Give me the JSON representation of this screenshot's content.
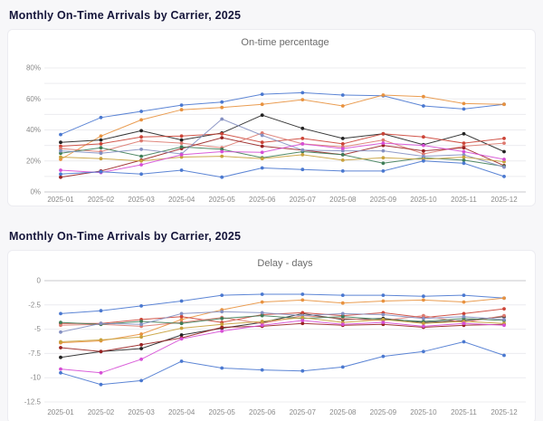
{
  "page": {
    "background": "#f7f7f9",
    "sections": [
      {
        "heading": "Monthly On-Time Arrivals by Carrier, 2025"
      },
      {
        "heading": "Monthly On-Time Arrivals by Carrier, 2025"
      }
    ]
  },
  "chart_data": [
    {
      "type": "line",
      "title": "On-time percentage",
      "xlabel": "",
      "ylabel": "",
      "grid": true,
      "legend": "none",
      "x": [
        "2025-01",
        "2025-02",
        "2025-03",
        "2025-04",
        "2025-05",
        "2025-06",
        "2025-07",
        "2025-08",
        "2025-09",
        "2025-10",
        "2025-11",
        "2025-12"
      ],
      "y_ticks": [
        {
          "value": 80,
          "label": "80%"
        },
        {
          "value": 70,
          "label": ""
        },
        {
          "value": 60,
          "label": "60%"
        },
        {
          "value": 50,
          "label": ""
        },
        {
          "value": 40,
          "label": "40%"
        },
        {
          "value": 30,
          "label": ""
        },
        {
          "value": 20,
          "label": "20%"
        },
        {
          "value": 10,
          "label": ""
        },
        {
          "value": 0,
          "label": "0%"
        }
      ],
      "ylim": [
        0,
        80
      ],
      "series": [
        {
          "name": "blue",
          "color": "#4a78d0",
          "values": [
            37,
            48,
            52,
            56,
            58,
            63,
            64,
            62.5,
            62,
            55.5,
            53.5,
            56.5
          ]
        },
        {
          "name": "orange",
          "color": "#e8923f",
          "values": [
            21,
            36,
            46.5,
            53,
            54.5,
            56.5,
            59.5,
            55.5,
            62.5,
            61.5,
            57,
            56.5
          ]
        },
        {
          "name": "black",
          "color": "#222222",
          "values": [
            32,
            33.5,
            39.5,
            33.5,
            38,
            49.5,
            41,
            34.5,
            37.5,
            30.5,
            37.5,
            26
          ]
        },
        {
          "name": "red",
          "color": "#cc4437",
          "values": [
            29.5,
            31,
            35.5,
            36,
            37.5,
            32,
            34.5,
            31,
            37.5,
            35.5,
            31.5,
            34.5
          ]
        },
        {
          "name": "salmon",
          "color": "#dd7a70",
          "values": [
            28,
            26,
            33,
            31.5,
            28.5,
            38,
            31,
            29,
            33.5,
            24.5,
            29.5,
            31.5
          ]
        },
        {
          "name": "maroon",
          "color": "#992222",
          "values": [
            9.5,
            13.5,
            20.5,
            28,
            35,
            29.5,
            27,
            24,
            30,
            26.5,
            28.5,
            17
          ]
        },
        {
          "name": "green",
          "color": "#3e7d57",
          "values": [
            25,
            28.5,
            23,
            29,
            27.5,
            22,
            26,
            24,
            18.5,
            22,
            20.5,
            16.5
          ]
        },
        {
          "name": "slate",
          "color": "#8590c2",
          "values": [
            26.5,
            25,
            27.5,
            24.5,
            47,
            36.5,
            27,
            26.5,
            26.5,
            23,
            24,
            16
          ]
        },
        {
          "name": "gold",
          "color": "#c8a13c",
          "values": [
            22.5,
            21.5,
            20,
            22.5,
            23,
            21.5,
            24,
            20.5,
            22,
            21,
            22.5,
            19.5
          ]
        },
        {
          "name": "magenta",
          "color": "#d64fd6",
          "values": [
            14,
            12.5,
            17.5,
            24,
            26,
            25.5,
            31,
            28,
            31.5,
            30,
            26,
            21
          ]
        },
        {
          "name": "blue-2",
          "color": "#4a78d0",
          "values": [
            11.5,
            13,
            11.5,
            14,
            9.5,
            15.5,
            14.5,
            13.5,
            13.5,
            20,
            18.5,
            10
          ]
        }
      ]
    },
    {
      "type": "line",
      "title": "Delay - days",
      "xlabel": "",
      "ylabel": "",
      "grid": true,
      "legend": "none",
      "x": [
        "2025-01",
        "2025-02",
        "2025-03",
        "2025-04",
        "2025-05",
        "2025-06",
        "2025-07",
        "2025-08",
        "2025-09",
        "2025-10",
        "2025-11",
        "2025-12"
      ],
      "y_ticks": [
        {
          "value": 0,
          "label": "0"
        },
        {
          "value": -2.5,
          "label": "-2.5"
        },
        {
          "value": -5,
          "label": "-5"
        },
        {
          "value": -7.5,
          "label": "-7.5"
        },
        {
          "value": -10,
          "label": "-10"
        },
        {
          "value": -12.5,
          "label": "-12.5"
        }
      ],
      "ylim": [
        -12.5,
        0
      ],
      "series": [
        {
          "name": "blue",
          "color": "#4a78d0",
          "values": [
            -3.4,
            -3.1,
            -2.6,
            -2.1,
            -1.5,
            -1.4,
            -1.4,
            -1.5,
            -1.5,
            -1.6,
            -1.5,
            -1.8
          ]
        },
        {
          "name": "orange",
          "color": "#e8923f",
          "values": [
            -6.4,
            -6.2,
            -5.5,
            -4.0,
            -3.0,
            -2.2,
            -2.0,
            -2.3,
            -2.1,
            -2.0,
            -2.2,
            -1.8
          ]
        },
        {
          "name": "black",
          "color": "#222222",
          "values": [
            -7.9,
            -7.3,
            -7.0,
            -5.6,
            -4.9,
            -4.3,
            -3.4,
            -4.0,
            -3.9,
            -4.3,
            -4.1,
            -3.7
          ]
        },
        {
          "name": "red",
          "color": "#cc4437",
          "values": [
            -4.4,
            -4.4,
            -4.0,
            -3.7,
            -4.3,
            -3.5,
            -3.3,
            -3.6,
            -3.3,
            -3.8,
            -3.4,
            -2.9
          ]
        },
        {
          "name": "salmon",
          "color": "#dd7a70",
          "values": [
            -4.6,
            -4.5,
            -4.7,
            -4.3,
            -3.8,
            -4.4,
            -3.6,
            -3.9,
            -4.1,
            -3.6,
            -4.3,
            -3.6
          ]
        },
        {
          "name": "maroon",
          "color": "#992222",
          "values": [
            -6.9,
            -7.3,
            -6.6,
            -5.9,
            -4.8,
            -4.7,
            -4.4,
            -4.6,
            -4.5,
            -4.8,
            -4.6,
            -4.5
          ]
        },
        {
          "name": "green",
          "color": "#3e7d57",
          "values": [
            -4.3,
            -4.5,
            -4.2,
            -4.4,
            -3.9,
            -3.6,
            -3.9,
            -3.7,
            -4.0,
            -4.2,
            -3.9,
            -4.1
          ]
        },
        {
          "name": "slate",
          "color": "#8590c2",
          "values": [
            -5.3,
            -4.4,
            -4.5,
            -3.4,
            -3.2,
            -3.3,
            -3.6,
            -3.4,
            -3.5,
            -3.9,
            -3.7,
            -4.0
          ]
        },
        {
          "name": "gold",
          "color": "#c8a13c",
          "values": [
            -6.3,
            -6.1,
            -5.8,
            -4.9,
            -4.5,
            -4.2,
            -3.8,
            -4.3,
            -4.0,
            -4.4,
            -4.2,
            -4.4
          ]
        },
        {
          "name": "magenta",
          "color": "#d64fd6",
          "values": [
            -9.1,
            -9.5,
            -8.1,
            -6.0,
            -5.2,
            -4.6,
            -4.1,
            -4.5,
            -4.3,
            -4.7,
            -4.4,
            -4.6
          ]
        },
        {
          "name": "blue-2",
          "color": "#4a78d0",
          "values": [
            -9.5,
            -10.7,
            -10.3,
            -8.3,
            -9.0,
            -9.2,
            -9.3,
            -8.9,
            -7.8,
            -7.3,
            -6.3,
            -7.7
          ]
        }
      ]
    }
  ]
}
